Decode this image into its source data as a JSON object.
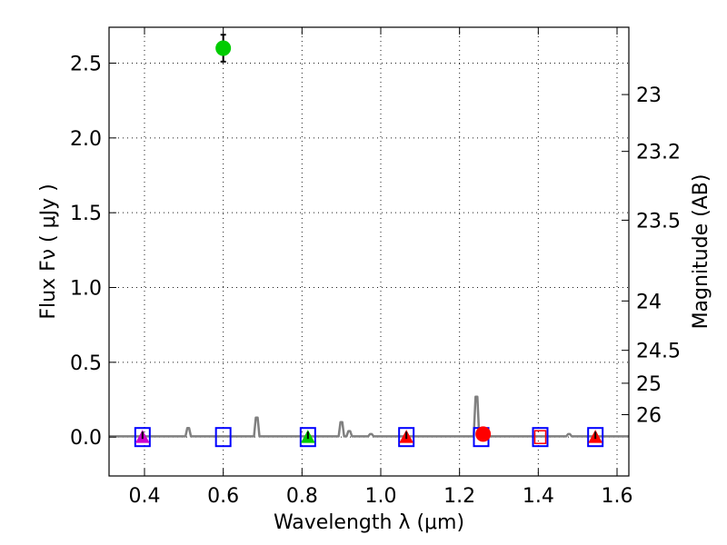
{
  "chart_data": {
    "type": "scatter",
    "title": "",
    "xlabel": "Wavelength  λ (μm)",
    "ylabel": "Flux  Fν  ( μJy )",
    "y2label": "Magnitude (AB)",
    "xlim": [
      0.31,
      1.63
    ],
    "ylim": [
      -0.26,
      2.74
    ],
    "xticks": [
      0.4,
      0.6,
      0.8,
      1.0,
      1.2,
      1.4,
      1.6
    ],
    "xtick_labels": [
      "0.4",
      "0.6",
      "0.8",
      "1.0",
      "1.2",
      "1.4",
      "1.6"
    ],
    "yticks": [
      0.0,
      0.5,
      1.0,
      1.5,
      2.0,
      2.5
    ],
    "ytick_labels": [
      "0.0",
      "0.5",
      "1.0",
      "1.5",
      "2.0",
      "2.5"
    ],
    "y2ticks": [
      {
        "label": "23",
        "flux": 2.29
      },
      {
        "label": "23.2",
        "flux": 1.91
      },
      {
        "label": "23.5",
        "flux": 1.45
      },
      {
        "label": "24",
        "flux": 0.91
      },
      {
        "label": "24.5",
        "flux": 0.58
      },
      {
        "label": "25",
        "flux": 0.36
      },
      {
        "label": "26",
        "flux": 0.15
      }
    ],
    "grid": true,
    "model_spectrum": {
      "color": "#808080",
      "baseline": 0.005,
      "lines": [
        {
          "x": 0.511,
          "flux": 0.06
        },
        {
          "x": 0.685,
          "flux": 0.13
        },
        {
          "x": 0.9,
          "flux": 0.1
        },
        {
          "x": 0.92,
          "flux": 0.04
        },
        {
          "x": 0.975,
          "flux": 0.02
        },
        {
          "x": 1.243,
          "flux": 0.27
        },
        {
          "x": 1.478,
          "flux": 0.02
        }
      ]
    },
    "model_photometry": [
      {
        "x": 0.395,
        "flux": 0.0
      },
      {
        "x": 0.6,
        "flux": 0.0
      },
      {
        "x": 0.815,
        "flux": 0.0
      },
      {
        "x": 1.065,
        "flux": 0.0
      },
      {
        "x": 1.255,
        "flux": 0.0
      },
      {
        "x": 1.405,
        "flux": 0.0
      },
      {
        "x": 1.545,
        "flux": 0.0
      }
    ],
    "observed": [
      {
        "x": 0.6,
        "flux": 2.6,
        "err": 0.09,
        "color": "#00cc00",
        "shape": "circle"
      },
      {
        "x": 1.26,
        "flux": 0.02,
        "err": 0.04,
        "color": "#ff0000",
        "shape": "circle"
      },
      {
        "x": 0.395,
        "flux": 0.0,
        "color": "#cc00cc",
        "shape": "triangle"
      },
      {
        "x": 0.815,
        "flux": 0.0,
        "color": "#00cc00",
        "shape": "triangle"
      },
      {
        "x": 1.065,
        "flux": 0.0,
        "color": "#ff0000",
        "shape": "triangle"
      },
      {
        "x": 1.545,
        "flux": 0.0,
        "color": "#ff0000",
        "shape": "triangle"
      }
    ],
    "upper_limits": [
      {
        "x": 0.395,
        "flux": 0.0
      },
      {
        "x": 0.815,
        "flux": 0.0
      },
      {
        "x": 1.065,
        "flux": 0.0
      },
      {
        "x": 1.545,
        "flux": 0.0
      }
    ],
    "red_open_box": {
      "x": 1.405,
      "flux": 0.0,
      "color": "#ff0000"
    },
    "colors": {
      "box_outline": "#0000ff",
      "axis": "#000000",
      "errorbar": "#000000"
    }
  }
}
